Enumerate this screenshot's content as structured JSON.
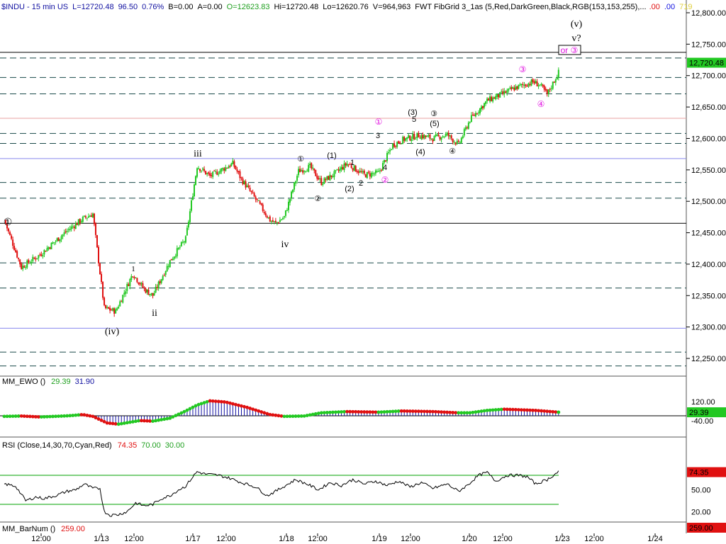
{
  "header": {
    "symbol": "$INDU - 15 min  US",
    "last": "L=12720.48",
    "change": "96.50",
    "change_pct": "0.76%",
    "bid": "B=0.00",
    "ask": "A=0.00",
    "open": "O=12623.83",
    "high": "Hi=12720.48",
    "low": "Lo=12620.76",
    "volume": "V=964,963",
    "study": "FWT FibGrid 3_1as (5,Red,DarkGreen,Black,RGB(153,153,255),...",
    "v1": ".00",
    "v2": ".00",
    "v3": "719"
  },
  "colors": {
    "up": "#22c822",
    "down": "#e01010",
    "price_badge": "#22c822",
    "ewo_badge": "#22c822",
    "rsi_badge": "#e01010",
    "bar_badge": "#e01010",
    "fib_line": "#1a4a4a",
    "blue_line": "#8888ee",
    "pink_line": "#e8a0a0",
    "ewo_hist": "#1010a0",
    "rsi_line": "#000000",
    "rsi_bound": "#00a000"
  },
  "price_axis": {
    "ticks": [
      "12,800.00",
      "12,750.00",
      "12,700.00",
      "12,650.00",
      "12,600.00",
      "12,550.00",
      "12,500.00",
      "12,450.00",
      "12,400.00",
      "12,350.00",
      "12,300.00",
      "12,250.00"
    ],
    "current_badge": "12,720.48"
  },
  "time_axis": {
    "labels": [
      "12:00",
      "1/13",
      "12:00",
      "1/17",
      "12:00",
      "1/18",
      "12:00",
      "1/19",
      "12:00",
      "1/20",
      "12:00",
      "1/23",
      "12:00",
      "1/24"
    ]
  },
  "ewo": {
    "label": "MM_EWO ()",
    "v1": "29.39",
    "v2": "31.90",
    "ticks": [
      "120.00",
      "-40.00"
    ],
    "badge": "29.39"
  },
  "rsi": {
    "label": "RSI (Close,14,30,70,Cyan,Red)",
    "v1": "74.35",
    "v2": "70.00",
    "v3": "30.00",
    "ticks": [
      "50.00",
      "20.00"
    ],
    "badge": "74.35"
  },
  "barnum": {
    "label": "MM_BarNum ()",
    "v1": "259.00",
    "badge": "259.00"
  },
  "annotations": {
    "iii": "iii",
    "ii": "ii",
    "one": "1",
    "iv_paren": "(iv)",
    "iv": "iv",
    "v_paren": "(v)",
    "v_q": "v?",
    "or3": "or ③",
    "c1": "①",
    "c2": "②",
    "c3": "③",
    "c4": "④",
    "p1": "(1)",
    "p2": "(2)",
    "p3": "(3)",
    "p4": "(4)",
    "p5": "(5)",
    "n1": "1",
    "n2": "2",
    "n3": "3",
    "n4": "4",
    "n5": "5"
  },
  "chart_data": {
    "type": "candlestick",
    "title": "$INDU - 15 min",
    "ylim": [
      12220,
      12820
    ],
    "levels": {
      "fib_dashed": [
        12728,
        12697,
        12671,
        12608,
        12592,
        12530,
        12505,
        12402,
        12362,
        12260,
        12238
      ],
      "blue": [
        12568,
        12298
      ],
      "pink": [
        12632
      ],
      "black": [
        12737,
        12465
      ]
    },
    "x_count": 260,
    "anchors": [
      [
        0,
        12470
      ],
      [
        12,
        12395
      ],
      [
        25,
        12415
      ],
      [
        45,
        12455
      ],
      [
        55,
        12472
      ],
      [
        62,
        12480
      ],
      [
        70,
        12330
      ],
      [
        78,
        12325
      ],
      [
        90,
        12385
      ],
      [
        98,
        12360
      ],
      [
        104,
        12350
      ],
      [
        116,
        12405
      ],
      [
        127,
        12440
      ],
      [
        135,
        12556
      ],
      [
        144,
        12540
      ],
      [
        160,
        12560
      ],
      [
        166,
        12535
      ],
      [
        177,
        12500
      ],
      [
        186,
        12470
      ],
      [
        190,
        12465
      ],
      [
        196,
        12475
      ],
      [
        206,
        12548
      ],
      [
        214,
        12555
      ],
      [
        222,
        12530
      ],
      [
        232,
        12545
      ],
      [
        240,
        12560
      ],
      [
        252,
        12542
      ],
      [
        262,
        12545
      ],
      [
        272,
        12590
      ],
      [
        279,
        12598
      ],
      [
        290,
        12605
      ],
      [
        300,
        12600
      ],
      [
        310,
        12606
      ],
      [
        318,
        12590
      ],
      [
        326,
        12630
      ],
      [
        338,
        12660
      ],
      [
        348,
        12670
      ],
      [
        357,
        12680
      ],
      [
        370,
        12690
      ],
      [
        375,
        12685
      ],
      [
        380,
        12670
      ],
      [
        388,
        12705
      ]
    ],
    "ewo_anchors": [
      [
        0,
        -5
      ],
      [
        12,
        -2
      ],
      [
        25,
        -10
      ],
      [
        45,
        0
      ],
      [
        55,
        10
      ],
      [
        62,
        -5
      ],
      [
        72,
        -60
      ],
      [
        80,
        -70
      ],
      [
        95,
        -40
      ],
      [
        104,
        -45
      ],
      [
        116,
        -20
      ],
      [
        127,
        40
      ],
      [
        135,
        90
      ],
      [
        144,
        125
      ],
      [
        155,
        115
      ],
      [
        170,
        70
      ],
      [
        186,
        10
      ],
      [
        196,
        -5
      ],
      [
        210,
        -2
      ],
      [
        222,
        25
      ],
      [
        240,
        35
      ],
      [
        262,
        30
      ],
      [
        278,
        40
      ],
      [
        300,
        35
      ],
      [
        318,
        25
      ],
      [
        326,
        25
      ],
      [
        338,
        45
      ],
      [
        350,
        55
      ],
      [
        372,
        45
      ],
      [
        388,
        30
      ]
    ],
    "rsi_anchors": [
      [
        0,
        58
      ],
      [
        8,
        55
      ],
      [
        15,
        35
      ],
      [
        22,
        40
      ],
      [
        28,
        38
      ],
      [
        36,
        42
      ],
      [
        44,
        48
      ],
      [
        50,
        50
      ],
      [
        56,
        58
      ],
      [
        62,
        52
      ],
      [
        67,
        52
      ],
      [
        70,
        20
      ],
      [
        74,
        15
      ],
      [
        80,
        16
      ],
      [
        86,
        20
      ],
      [
        92,
        32
      ],
      [
        98,
        28
      ],
      [
        104,
        30
      ],
      [
        110,
        38
      ],
      [
        116,
        42
      ],
      [
        122,
        50
      ],
      [
        127,
        55
      ],
      [
        132,
        68
      ],
      [
        135,
        75
      ],
      [
        140,
        72
      ],
      [
        150,
        70
      ],
      [
        158,
        66
      ],
      [
        166,
        60
      ],
      [
        176,
        54
      ],
      [
        184,
        42
      ],
      [
        190,
        48
      ],
      [
        196,
        55
      ],
      [
        204,
        64
      ],
      [
        212,
        58
      ],
      [
        220,
        50
      ],
      [
        228,
        60
      ],
      [
        236,
        56
      ],
      [
        244,
        64
      ],
      [
        252,
        58
      ],
      [
        260,
        62
      ],
      [
        268,
        56
      ],
      [
        276,
        62
      ],
      [
        284,
        54
      ],
      [
        292,
        60
      ],
      [
        300,
        52
      ],
      [
        310,
        58
      ],
      [
        318,
        48
      ],
      [
        324,
        56
      ],
      [
        332,
        70
      ],
      [
        338,
        74
      ],
      [
        344,
        62
      ],
      [
        352,
        70
      ],
      [
        360,
        70
      ],
      [
        366,
        68
      ],
      [
        372,
        58
      ],
      [
        380,
        64
      ],
      [
        388,
        75
      ]
    ]
  }
}
